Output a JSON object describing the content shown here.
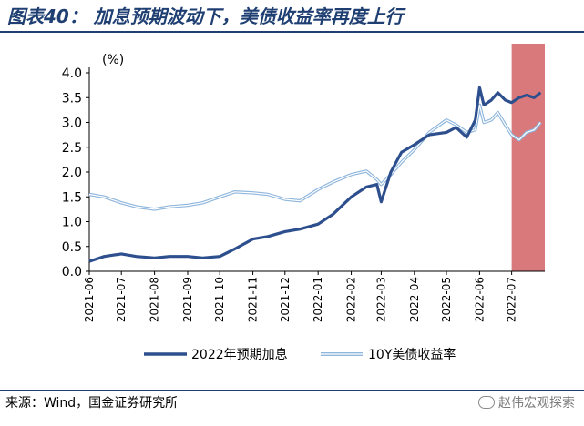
{
  "title": "图表40：  加息预期波动下，美债收益率再度上行",
  "source": "来源：Wind，国金证券研究所",
  "watermark": "赵伟宏观探索",
  "colors": {
    "title": "#1f3f73",
    "series1": "#2d4f8e",
    "series2": "#8fb6dd",
    "highlight": "#d9797b"
  },
  "chart_data": {
    "type": "line",
    "ylabel": "(%)",
    "ylim": [
      0,
      4
    ],
    "yticks": [
      "0.0",
      "0.5",
      "1.0",
      "1.5",
      "2.0",
      "2.5",
      "3.0",
      "3.5",
      "4.0"
    ],
    "xticks": [
      "2021-06",
      "2021-07",
      "2021-08",
      "2021-09",
      "2021-10",
      "2021-11",
      "2021-12",
      "2022-01",
      "2022-02",
      "2022-03",
      "2022-04",
      "2022-05",
      "2022-06",
      "2022-07"
    ],
    "highlight_range": [
      "2022-07",
      "2022-08"
    ],
    "legend_position": "bottom",
    "series": [
      {
        "name": "2022年预期加息",
        "x": [
          "2021-06",
          "2021-06-15",
          "2021-07",
          "2021-07-15",
          "2021-08",
          "2021-08-15",
          "2021-09",
          "2021-09-15",
          "2021-10",
          "2021-10-15",
          "2021-11",
          "2021-11-15",
          "2021-12",
          "2021-12-15",
          "2022-01",
          "2022-01-15",
          "2022-02",
          "2022-02-15",
          "2022-02-25",
          "2022-03",
          "2022-03-10",
          "2022-03-20",
          "2022-04",
          "2022-04-15",
          "2022-05",
          "2022-05-10",
          "2022-05-20",
          "2022-05-28",
          "2022-06",
          "2022-06-05",
          "2022-06-12",
          "2022-06-18",
          "2022-06-25",
          "2022-07",
          "2022-07-08",
          "2022-07-15",
          "2022-07-22",
          "2022-07-28"
        ],
        "values": [
          0.2,
          0.3,
          0.35,
          0.3,
          0.27,
          0.3,
          0.3,
          0.27,
          0.3,
          0.45,
          0.65,
          0.7,
          0.8,
          0.85,
          0.95,
          1.15,
          1.5,
          1.7,
          1.75,
          1.4,
          2.0,
          2.4,
          2.55,
          2.75,
          2.8,
          2.9,
          2.7,
          3.05,
          3.7,
          3.35,
          3.45,
          3.6,
          3.45,
          3.4,
          3.5,
          3.55,
          3.5,
          3.6
        ]
      },
      {
        "name": "10Y美债收益率",
        "x": [
          "2021-06",
          "2021-06-15",
          "2021-07",
          "2021-07-15",
          "2021-08",
          "2021-08-15",
          "2021-09",
          "2021-09-15",
          "2021-10",
          "2021-10-15",
          "2021-11",
          "2021-11-15",
          "2021-12",
          "2021-12-15",
          "2022-01",
          "2022-01-15",
          "2022-02",
          "2022-02-15",
          "2022-02-25",
          "2022-03",
          "2022-03-10",
          "2022-03-20",
          "2022-04",
          "2022-04-15",
          "2022-05",
          "2022-05-10",
          "2022-05-20",
          "2022-05-28",
          "2022-06",
          "2022-06-05",
          "2022-06-12",
          "2022-06-18",
          "2022-06-25",
          "2022-07",
          "2022-07-08",
          "2022-07-15",
          "2022-07-22",
          "2022-07-28"
        ],
        "values": [
          1.55,
          1.5,
          1.38,
          1.3,
          1.25,
          1.3,
          1.33,
          1.38,
          1.5,
          1.6,
          1.58,
          1.55,
          1.45,
          1.42,
          1.65,
          1.8,
          1.95,
          2.02,
          1.85,
          1.75,
          1.95,
          2.2,
          2.45,
          2.8,
          3.05,
          2.95,
          2.8,
          2.85,
          3.35,
          3.0,
          3.05,
          3.2,
          2.95,
          2.75,
          2.65,
          2.8,
          2.85,
          3.0
        ]
      }
    ]
  }
}
